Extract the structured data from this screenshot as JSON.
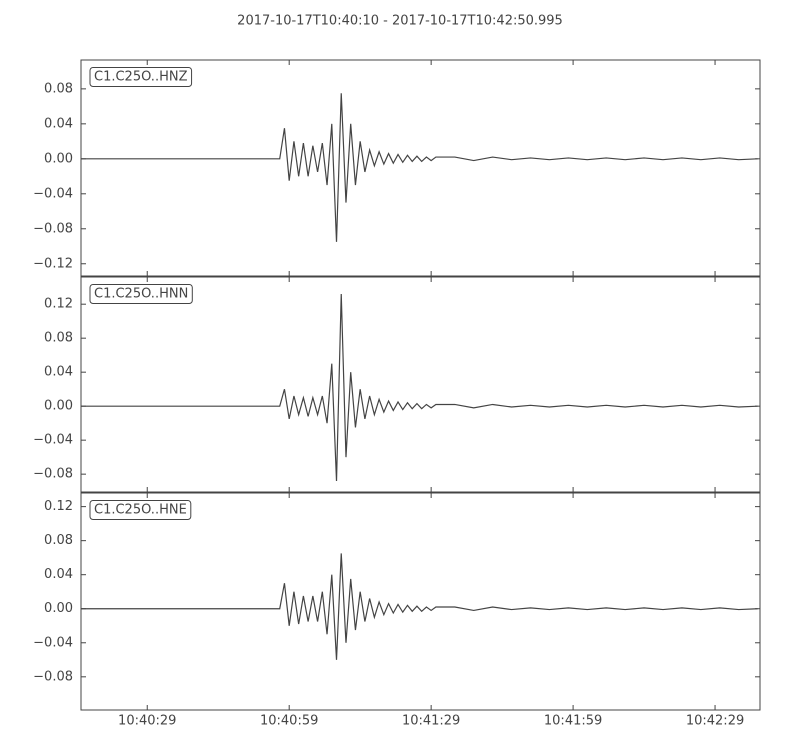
{
  "title": "2017-10-17T10:40:10  -  2017-10-17T10:42:50.995",
  "chart_data": [
    {
      "type": "line",
      "label": "C1.C25O..HNZ",
      "color": "#444444",
      "x": [
        "10:40:15",
        "10:40:57",
        "10:40:58",
        "10:40:59",
        "10:41:00",
        "10:41:01",
        "10:41:02",
        "10:41:03",
        "10:41:04",
        "10:41:05",
        "10:41:06",
        "10:41:07",
        "10:41:08",
        "10:41:09",
        "10:41:10",
        "10:41:11",
        "10:41:12",
        "10:41:13",
        "10:41:14",
        "10:41:15",
        "10:41:16",
        "10:41:17",
        "10:41:18",
        "10:41:19",
        "10:41:20",
        "10:41:21",
        "10:41:22",
        "10:41:23",
        "10:41:24",
        "10:41:25",
        "10:41:26",
        "10:41:27",
        "10:41:28",
        "10:41:29",
        "10:41:30",
        "10:41:34",
        "10:41:38",
        "10:41:42",
        "10:41:46",
        "10:41:50",
        "10:41:54",
        "10:41:58",
        "10:42:02",
        "10:42:06",
        "10:42:10",
        "10:42:14",
        "10:42:18",
        "10:42:22",
        "10:42:26",
        "10:42:30",
        "10:42:34",
        "10:42:38"
      ],
      "values": [
        0,
        0,
        0.035,
        -0.025,
        0.02,
        -0.02,
        0.018,
        -0.02,
        0.015,
        -0.015,
        0.018,
        -0.03,
        0.04,
        -0.095,
        0.075,
        -0.05,
        0.04,
        -0.03,
        0.02,
        -0.015,
        0.01,
        -0.008,
        0.008,
        -0.006,
        0.006,
        -0.005,
        0.005,
        -0.004,
        0.004,
        -0.003,
        0.003,
        -0.003,
        0.002,
        -0.002,
        0.002,
        0.002,
        -0.002,
        0.002,
        -0.001,
        0.001,
        -0.001,
        0.001,
        -0.001,
        0.001,
        -0.001,
        0.001,
        -0.001,
        0.001,
        -0.001,
        0.001,
        -0.001,
        0
      ],
      "xlim": [
        "10:40:15",
        "10:42:38.5"
      ],
      "ylim": [
        -0.134,
        0.113
      ],
      "yticks": [
        {
          "value": -0.12,
          "label": "−0.12"
        },
        {
          "value": -0.08,
          "label": "−0.08"
        },
        {
          "value": -0.04,
          "label": "−0.04"
        },
        {
          "value": 0,
          "label": "0.00"
        },
        0.04,
        0.08
      ]
    },
    {
      "type": "line",
      "label": "C1.C25O..HNN",
      "color": "#444444",
      "x": [
        "10:40:15",
        "10:40:57",
        "10:40:58",
        "10:40:59",
        "10:41:00",
        "10:41:01",
        "10:41:02",
        "10:41:03",
        "10:41:04",
        "10:41:05",
        "10:41:06",
        "10:41:07",
        "10:41:08",
        "10:41:09",
        "10:41:10",
        "10:41:11",
        "10:41:12",
        "10:41:13",
        "10:41:14",
        "10:41:15",
        "10:41:16",
        "10:41:17",
        "10:41:18",
        "10:41:19",
        "10:41:20",
        "10:41:21",
        "10:41:22",
        "10:41:23",
        "10:41:24",
        "10:41:25",
        "10:41:26",
        "10:41:27",
        "10:41:28",
        "10:41:29",
        "10:41:30",
        "10:41:34",
        "10:41:38",
        "10:41:42",
        "10:41:46",
        "10:41:50",
        "10:41:54",
        "10:41:58",
        "10:42:02",
        "10:42:06",
        "10:42:10",
        "10:42:14",
        "10:42:18",
        "10:42:22",
        "10:42:26",
        "10:42:30",
        "10:42:34",
        "10:42:38"
      ],
      "values": [
        0,
        0,
        0.02,
        -0.015,
        0.012,
        -0.01,
        0.01,
        -0.012,
        0.01,
        -0.01,
        0.012,
        -0.02,
        0.05,
        -0.088,
        0.132,
        -0.06,
        0.04,
        -0.025,
        0.02,
        -0.015,
        0.012,
        -0.01,
        0.008,
        -0.007,
        0.006,
        -0.005,
        0.005,
        -0.004,
        0.004,
        -0.003,
        0.003,
        -0.003,
        0.002,
        -0.002,
        0.002,
        0.002,
        -0.002,
        0.002,
        -0.001,
        0.001,
        -0.001,
        0.001,
        -0.001,
        0.001,
        -0.001,
        0.001,
        -0.001,
        0.001,
        -0.001,
        0.001,
        -0.001,
        0
      ],
      "xlim": [
        "10:40:15",
        "10:42:38.5"
      ],
      "ylim": [
        -0.101,
        0.152
      ],
      "yticks": [
        {
          "value": -0.08,
          "label": "−0.08"
        },
        {
          "value": -0.04,
          "label": "−0.04"
        },
        {
          "value": 0,
          "label": "0.00"
        },
        0.04,
        0.08,
        0.12
      ]
    },
    {
      "type": "line",
      "label": "C1.C25O..HNE",
      "color": "#444444",
      "x": [
        "10:40:15",
        "10:40:57",
        "10:40:58",
        "10:40:59",
        "10:41:00",
        "10:41:01",
        "10:41:02",
        "10:41:03",
        "10:41:04",
        "10:41:05",
        "10:41:06",
        "10:41:07",
        "10:41:08",
        "10:41:09",
        "10:41:10",
        "10:41:11",
        "10:41:12",
        "10:41:13",
        "10:41:14",
        "10:41:15",
        "10:41:16",
        "10:41:17",
        "10:41:18",
        "10:41:19",
        "10:41:20",
        "10:41:21",
        "10:41:22",
        "10:41:23",
        "10:41:24",
        "10:41:25",
        "10:41:26",
        "10:41:27",
        "10:41:28",
        "10:41:29",
        "10:41:30",
        "10:41:34",
        "10:41:38",
        "10:41:42",
        "10:41:46",
        "10:41:50",
        "10:41:54",
        "10:41:58",
        "10:42:02",
        "10:42:06",
        "10:42:10",
        "10:42:14",
        "10:42:18",
        "10:42:22",
        "10:42:26",
        "10:42:30",
        "10:42:34",
        "10:42:38"
      ],
      "values": [
        0,
        0,
        0.03,
        -0.02,
        0.02,
        -0.018,
        0.015,
        -0.015,
        0.015,
        -0.015,
        0.02,
        -0.03,
        0.04,
        -0.06,
        0.065,
        -0.04,
        0.035,
        -0.025,
        0.02,
        -0.015,
        0.012,
        -0.01,
        0.008,
        -0.007,
        0.006,
        -0.005,
        0.005,
        -0.004,
        0.004,
        -0.003,
        0.003,
        -0.003,
        0.002,
        -0.002,
        0.002,
        0.002,
        -0.002,
        0.002,
        -0.001,
        0.001,
        -0.001,
        0.001,
        -0.001,
        0.001,
        -0.001,
        0.001,
        -0.001,
        0.001,
        -0.001,
        0.001,
        -0.001,
        0
      ],
      "xlim": [
        "10:40:15",
        "10:42:38.5"
      ],
      "ylim": [
        -0.119,
        0.136
      ],
      "yticks": [
        {
          "value": -0.08,
          "label": "−0.08"
        },
        {
          "value": -0.04,
          "label": "−0.04"
        },
        {
          "value": 0,
          "label": "0.00"
        },
        0.04,
        0.08,
        0.12
      ],
      "xticks": [
        "10:40:29",
        "10:40:59",
        "10:41:29",
        "10:41:59",
        "10:42:29"
      ]
    }
  ]
}
